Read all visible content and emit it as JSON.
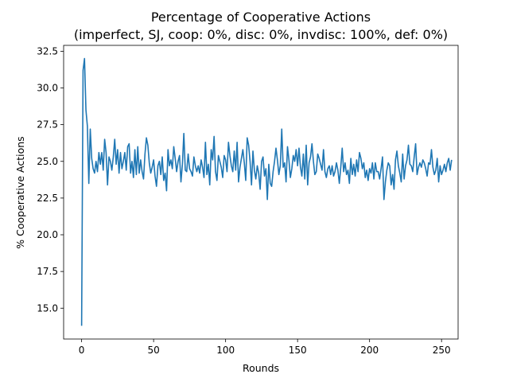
{
  "chart_data": {
    "type": "line",
    "title": "Percentage of Cooperative Actions",
    "subtitle": "(imperfect, SJ, coop: 0%, disc: 0%, invdisc: 100%, def: 0%)",
    "xlabel": "Rounds",
    "ylabel": "% Cooperative Actions",
    "xlim": [
      -12.5,
      261.5
    ],
    "ylim": [
      12.9,
      32.9
    ],
    "xticks": [
      0,
      50,
      100,
      150,
      200,
      250
    ],
    "yticks": [
      15.0,
      17.5,
      20.0,
      22.5,
      25.0,
      27.5,
      30.0,
      32.5
    ],
    "xtick_labels": [
      "0",
      "50",
      "100",
      "150",
      "200",
      "250"
    ],
    "ytick_labels": [
      "15.0",
      "17.5",
      "20.0",
      "22.5",
      "25.0",
      "27.5",
      "30.0",
      "32.5"
    ],
    "grid": false,
    "line_color": "#1f77b4",
    "series": [
      {
        "x_start": 0,
        "x_step": 1,
        "values": [
          13.8,
          31.2,
          32.0,
          28.5,
          27.4,
          23.5,
          27.2,
          25.2,
          24.5,
          24.2,
          25.0,
          24.3,
          25.6,
          24.8,
          25.6,
          24.4,
          26.5,
          25.6,
          23.4,
          25.3,
          25.0,
          24.4,
          25.3,
          26.5,
          24.8,
          25.8,
          24.2,
          25.6,
          24.5,
          25.0,
          25.6,
          24.4,
          26.0,
          26.2,
          24.2,
          25.0,
          23.9,
          25.8,
          24.1,
          26.0,
          24.2,
          25.1,
          24.3,
          23.8,
          25.5,
          26.6,
          26.1,
          24.9,
          24.2,
          24.6,
          25.1,
          24.0,
          23.3,
          24.7,
          25.0,
          24.1,
          25.3,
          23.7,
          24.2,
          23.0,
          25.8,
          24.7,
          25.1,
          24.5,
          26.0,
          25.2,
          24.3,
          25.0,
          25.4,
          23.6,
          24.8,
          26.9,
          24.4,
          24.3,
          25.5,
          24.5,
          24.3,
          24.0,
          25.3,
          24.7,
          24.3,
          24.7,
          24.2,
          25.1,
          24.6,
          23.9,
          26.3,
          24.1,
          24.8,
          23.4,
          25.8,
          25.1,
          26.7,
          24.3,
          23.7,
          25.4,
          25.0,
          24.6,
          23.9,
          25.4,
          25.1,
          24.3,
          26.3,
          25.4,
          24.7,
          24.3,
          25.7,
          24.4,
          26.3,
          23.6,
          24.6,
          25.2,
          25.8,
          24.9,
          23.7,
          26.6,
          26.1,
          25.0,
          23.4,
          25.7,
          24.4,
          23.8,
          24.7,
          24.2,
          23.1,
          25.0,
          25.3,
          24.0,
          24.5,
          22.4,
          24.8,
          23.5,
          23.3,
          24.3,
          25.0,
          25.9,
          25.1,
          24.1,
          24.7,
          27.2,
          24.6,
          24.9,
          23.6,
          26.0,
          25.1,
          23.9,
          24.5,
          25.4,
          25.0,
          25.8,
          24.7,
          25.9,
          24.6,
          24.0,
          25.5,
          23.8,
          26.1,
          23.4,
          24.9,
          25.3,
          26.2,
          25.0,
          24.1,
          24.3,
          25.5,
          25.2,
          24.8,
          24.4,
          25.8,
          24.3,
          23.9,
          24.5,
          24.7,
          24.1,
          24.7,
          24.0,
          24.3,
          24.9,
          24.4,
          23.5,
          24.6,
          25.9,
          24.3,
          24.9,
          24.1,
          24.4,
          23.5,
          25.2,
          24.1,
          24.8,
          24.0,
          25.1,
          24.3,
          25.6,
          25.2,
          24.5,
          24.9,
          23.9,
          24.4,
          23.7,
          24.5,
          24.2,
          24.9,
          23.8,
          24.9,
          24.3,
          24.3,
          23.8,
          24.5,
          25.3,
          22.4,
          23.6,
          24.4,
          24.9,
          24.7,
          23.4,
          24.1,
          23.1,
          25.1,
          25.7,
          24.7,
          24.2,
          23.6,
          25.5,
          23.8,
          24.7,
          25.1,
          26.1,
          24.8,
          24.7,
          24.3,
          25.3,
          26.2,
          24.1,
          24.6,
          24.9,
          24.6,
          25.1,
          24.9,
          24.5,
          24.0,
          24.9,
          24.8,
          25.8,
          24.6,
          24.1,
          24.4,
          25.2,
          23.6,
          24.7,
          24.1,
          24.4,
          24.8,
          24.3,
          24.9,
          25.2,
          24.4,
          25.1
        ]
      }
    ]
  }
}
